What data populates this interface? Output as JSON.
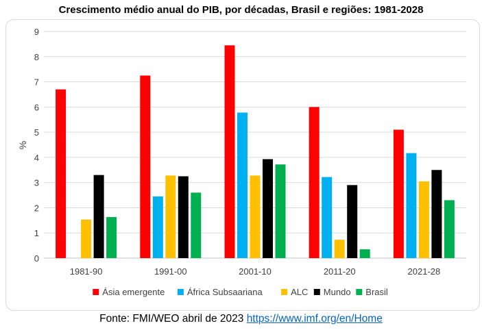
{
  "chart_data": {
    "type": "bar",
    "title": "Crescimento médio anual do PIB, por décadas, Brasil e regiões: 1981-2028",
    "xlabel": "",
    "ylabel": "%",
    "ylim": [
      0,
      9
    ],
    "yticks": [
      "0",
      "1",
      "2",
      "3",
      "4",
      "5",
      "6",
      "7",
      "8",
      "9"
    ],
    "grid": true,
    "legend_position": "bottom",
    "categories": [
      "1981-90",
      "1991-00",
      "2001-10",
      "2011-20",
      "2021-28"
    ],
    "series": [
      {
        "name": "Ásia emergente",
        "color": "#ff0000",
        "values": [
          6.7,
          7.25,
          8.45,
          6.0,
          5.1
        ]
      },
      {
        "name": "África Subsaariana",
        "color": "#00b0f0",
        "values": [
          null,
          2.45,
          5.78,
          3.22,
          4.17
        ]
      },
      {
        "name": "ALC",
        "color": "#ffc000",
        "values": [
          1.53,
          3.28,
          3.28,
          0.73,
          3.05
        ]
      },
      {
        "name": "Mundo",
        "color": "#000000",
        "values": [
          3.3,
          3.25,
          3.93,
          2.9,
          3.5
        ]
      },
      {
        "name": "Brasil",
        "color": "#00b050",
        "values": [
          1.63,
          2.6,
          3.72,
          0.35,
          2.3
        ]
      }
    ]
  },
  "source": {
    "text": "Fonte: FMI/WEO abril de 2023 ",
    "link": "https://www.imf.org/en/Home"
  }
}
